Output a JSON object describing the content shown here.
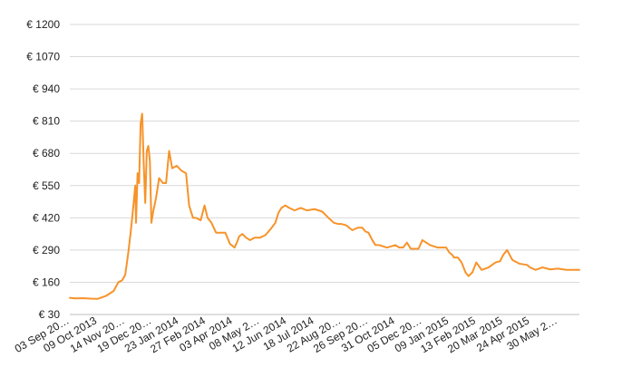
{
  "chart_data": {
    "type": "line",
    "title": "",
    "xlabel": "",
    "ylabel": "",
    "y_ticks": [
      "€ 30",
      "€ 160",
      "€ 290",
      "€ 420",
      "€ 550",
      "€ 680",
      "€ 810",
      "€ 940",
      "€ 1070",
      "€ 1200"
    ],
    "y_tick_values": [
      30,
      160,
      290,
      420,
      550,
      680,
      810,
      940,
      1070,
      1200
    ],
    "ylim": [
      30,
      1200
    ],
    "x_ticks": [
      "03 Sep 20…",
      "09 Oct 2013",
      "14 Nov 20…",
      "19 Dec 20…",
      "23 Jan 2014",
      "27 Feb 2014",
      "03 Apr 2014",
      "08 May 2…",
      "12 Jun 2014",
      "18 Jul 2014",
      "22 Aug 20…",
      "26 Sep 20…",
      "31 Oct 2014",
      "05 Dec 20…",
      "09 Jan 2015",
      "13 Feb 2015",
      "20 Mar 2015",
      "24 Apr 2015",
      "30 May 2…"
    ],
    "x_tick_dates": [
      "2013-09-03",
      "2013-10-09",
      "2013-11-14",
      "2013-12-19",
      "2014-01-23",
      "2014-02-27",
      "2014-04-03",
      "2014-05-08",
      "2014-06-12",
      "2014-07-18",
      "2014-08-22",
      "2014-09-26",
      "2014-10-31",
      "2014-12-05",
      "2015-01-09",
      "2015-02-13",
      "2015-03-20",
      "2015-04-24",
      "2015-05-30"
    ],
    "xlim": [
      "2013-09-03",
      "2015-06-27"
    ],
    "grid": true,
    "line_color": "#f7932a",
    "series": [
      {
        "x": [
          "2013-09-03",
          "2013-09-10",
          "2013-09-20",
          "2013-09-30",
          "2013-10-09",
          "2013-10-20",
          "2013-10-30",
          "2013-11-05",
          "2013-11-10",
          "2013-11-14",
          "2013-11-18",
          "2013-11-21",
          "2013-11-24",
          "2013-11-27",
          "2013-11-28",
          "2013-11-30",
          "2013-12-02",
          "2013-12-04",
          "2013-12-06",
          "2013-12-08",
          "2013-12-10",
          "2013-12-12",
          "2013-12-14",
          "2013-12-16",
          "2013-12-18",
          "2013-12-20",
          "2013-12-24",
          "2013-12-28",
          "2014-01-02",
          "2014-01-06",
          "2014-01-10",
          "2014-01-14",
          "2014-01-20",
          "2014-01-26",
          "2014-02-01",
          "2014-02-05",
          "2014-02-10",
          "2014-02-14",
          "2014-02-20",
          "2014-02-25",
          "2014-03-01",
          "2014-03-06",
          "2014-03-12",
          "2014-03-18",
          "2014-03-24",
          "2014-03-30",
          "2014-04-05",
          "2014-04-08",
          "2014-04-11",
          "2014-04-15",
          "2014-04-20",
          "2014-04-25",
          "2014-05-01",
          "2014-05-08",
          "2014-05-15",
          "2014-05-22",
          "2014-05-28",
          "2014-06-01",
          "2014-06-05",
          "2014-06-10",
          "2014-06-15",
          "2014-06-22",
          "2014-06-30",
          "2014-07-08",
          "2014-07-18",
          "2014-07-28",
          "2014-08-05",
          "2014-08-12",
          "2014-08-18",
          "2014-08-22",
          "2014-08-28",
          "2014-09-05",
          "2014-09-12",
          "2014-09-18",
          "2014-09-22",
          "2014-09-26",
          "2014-10-01",
          "2014-10-05",
          "2014-10-10",
          "2014-10-20",
          "2014-10-31",
          "2014-11-05",
          "2014-11-10",
          "2014-11-15",
          "2014-11-20",
          "2014-11-30",
          "2014-12-05",
          "2014-12-15",
          "2014-12-25",
          "2015-01-01",
          "2015-01-05",
          "2015-01-09",
          "2015-01-13",
          "2015-01-15",
          "2015-01-20",
          "2015-01-25",
          "2015-01-30",
          "2015-02-03",
          "2015-02-08",
          "2015-02-13",
          "2015-02-20",
          "2015-03-01",
          "2015-03-10",
          "2015-03-16",
          "2015-03-20",
          "2015-03-25",
          "2015-04-01",
          "2015-04-10",
          "2015-04-20",
          "2015-04-24",
          "2015-05-01",
          "2015-05-10",
          "2015-05-20",
          "2015-05-30",
          "2015-06-10",
          "2015-06-20",
          "2015-06-27"
        ],
        "y": [
          97,
          95,
          96,
          94,
          93,
          105,
          125,
          160,
          168,
          190,
          280,
          360,
          450,
          550,
          400,
          600,
          560,
          800,
          840,
          640,
          480,
          690,
          710,
          650,
          400,
          440,
          500,
          580,
          560,
          560,
          690,
          620,
          630,
          610,
          600,
          470,
          420,
          420,
          410,
          470,
          420,
          400,
          360,
          360,
          360,
          315,
          300,
          320,
          345,
          355,
          340,
          330,
          340,
          340,
          350,
          375,
          400,
          440,
          460,
          470,
          460,
          450,
          460,
          450,
          455,
          445,
          420,
          400,
          395,
          395,
          390,
          370,
          380,
          380,
          365,
          360,
          330,
          310,
          310,
          300,
          310,
          300,
          300,
          320,
          295,
          295,
          330,
          310,
          300,
          300,
          300,
          280,
          270,
          260,
          260,
          240,
          200,
          185,
          200,
          240,
          210,
          220,
          240,
          245,
          270,
          290,
          250,
          235,
          230,
          220,
          210,
          220,
          212,
          215,
          210,
          210,
          210
        ]
      }
    ]
  }
}
